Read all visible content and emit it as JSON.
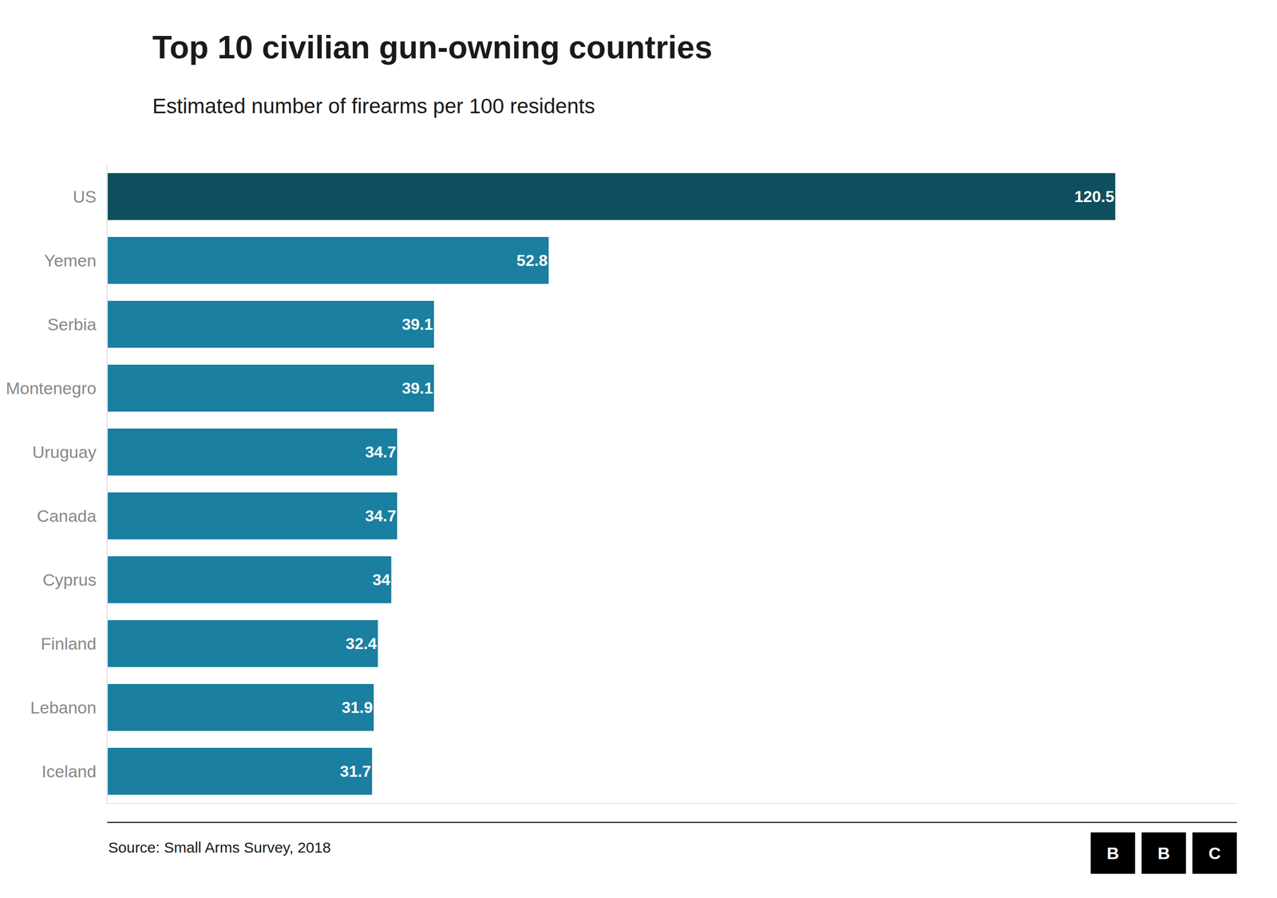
{
  "chart_data": {
    "type": "bar",
    "orientation": "horizontal",
    "title": "Top 10 civilian gun-owning countries",
    "subtitle": "Estimated number of firearms per 100 residents",
    "source": "Source: Small Arms Survey, 2018",
    "annotations": [
      "B",
      "B",
      "C"
    ],
    "categories": [
      "US",
      "Yemen",
      "Serbia",
      "Montenegro",
      "Uruguay",
      "Canada",
      "Cyprus",
      "Finland",
      "Lebanon",
      "Iceland"
    ],
    "values": [
      120.5,
      52.8,
      39.1,
      39.1,
      34.7,
      34.7,
      34.0,
      32.4,
      31.9,
      31.7
    ],
    "colors": [
      "#0d4f5c",
      "#1a7fa0",
      "#1a7fa0",
      "#1a7fa0",
      "#1a7fa0",
      "#1a7fa0",
      "#1a7fa0",
      "#1a7fa0",
      "#1a7fa0",
      "#1a7fa0"
    ],
    "xlim": [
      0,
      135
    ],
    "tick_labels": "y",
    "data_labels": true,
    "grid": false
  }
}
